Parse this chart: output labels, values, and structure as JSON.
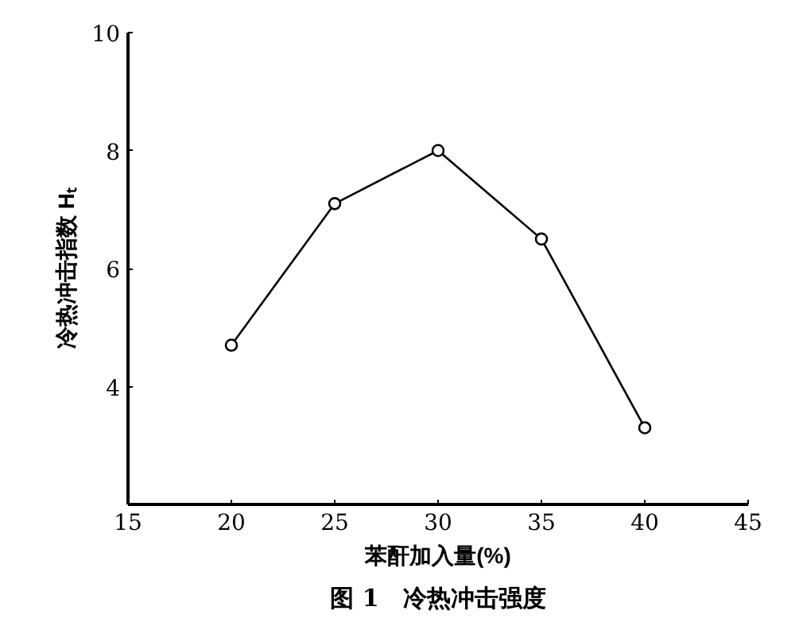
{
  "chart_data": {
    "type": "line",
    "xlabel": "苯酐加入量(%)",
    "ylabel": "冷热冲击指数 Hₜ",
    "x": [
      20,
      25,
      30,
      35,
      40
    ],
    "series": [
      {
        "color": "#000000",
        "values": [
          4.7,
          7.1,
          8.0,
          6.5,
          3.3
        ]
      }
    ],
    "marker": "circle",
    "line_style": "solid",
    "grid": false,
    "xlim": [
      15,
      45
    ],
    "xticks": [
      15,
      20,
      25,
      30,
      35,
      40,
      45
    ],
    "ylim": [
      2,
      10
    ],
    "yticks": [
      4,
      6,
      8,
      10
    ],
    "annotations": [
      "图 1　冷热冲击强度"
    ]
  }
}
